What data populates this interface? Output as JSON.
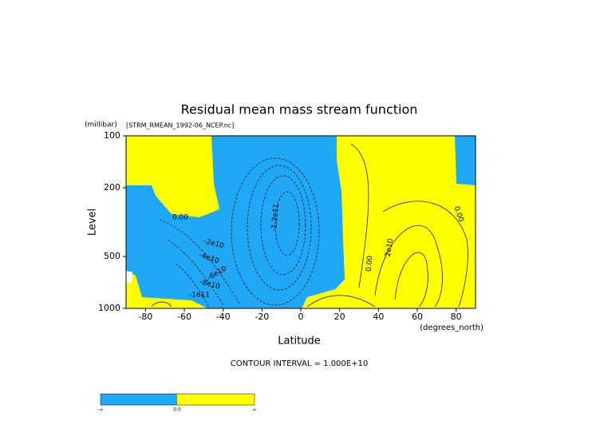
{
  "chart_data": {
    "type": "contour",
    "title": "Residual mean mass stream function",
    "y_unit": "(millibar)",
    "subtitle": "[STRM_RMEAN_1992-06_NCEP.nc]",
    "y_label": "Level",
    "x_label": "Latitude",
    "x_unit": "(degrees_north)",
    "footer": "CONTOUR INTERVAL = 1.000E+10",
    "xlim": [
      -90,
      90
    ],
    "xticks": [
      -80,
      -60,
      -40,
      -20,
      0,
      20,
      40,
      60,
      80
    ],
    "ylim": [
      1000,
      100
    ],
    "yticks": [
      100,
      200,
      500,
      1000
    ],
    "log_y": true,
    "colors": [
      "#1ea8f5",
      "#ffff00"
    ],
    "colorbar_labels": [
      "-∞",
      "0.0",
      "∞"
    ],
    "contour_labels": [
      "0.00",
      "-2e10",
      "-4e10",
      "-6e10",
      "-8e10",
      "-1e11",
      "-1.2e11",
      "0.00",
      "2e10",
      "0.00"
    ]
  }
}
